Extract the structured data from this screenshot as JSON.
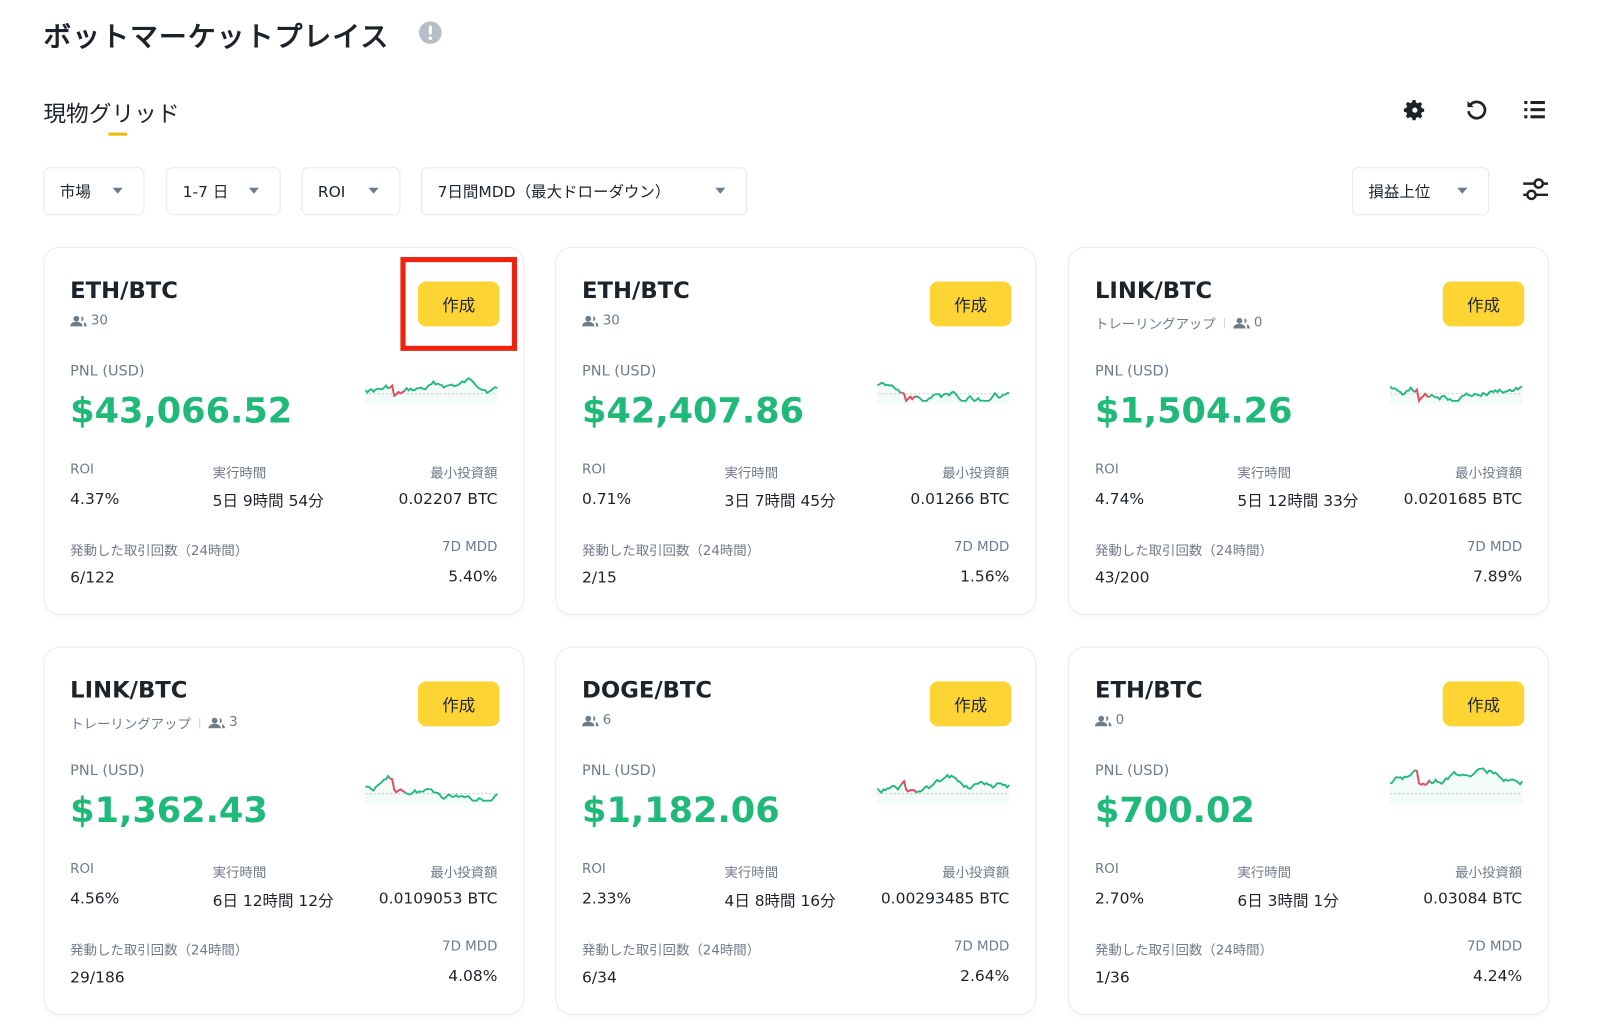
{
  "header": {
    "title": "ボットマーケットプレイス"
  },
  "tab": {
    "label": "現物グリッド"
  },
  "filters": [
    "市場",
    "1-7 日",
    "ROI",
    "7日間MDD（最大ドローダウン）"
  ],
  "sort": "損益上位",
  "card_labels": {
    "pnl": "PNL (USD)",
    "roi": "ROI",
    "runtime": "実行時間",
    "min_invest": "最小投資額",
    "trades": "発動した取引回数（24時間）",
    "mdd": "7D MDD",
    "create": "作成"
  },
  "cards": [
    {
      "pair": "ETH/BTC",
      "tag": null,
      "users": "30",
      "pnl": "$43,066.52",
      "roi": "4.37%",
      "runtime": "5日 9時間 54分",
      "min_invest": "0.02207 BTC",
      "trades": "6/122",
      "mdd": "5.40%"
    },
    {
      "pair": "ETH/BTC",
      "tag": null,
      "users": "30",
      "pnl": "$42,407.86",
      "roi": "0.71%",
      "runtime": "3日 7時間 45分",
      "min_invest": "0.01266 BTC",
      "trades": "2/15",
      "mdd": "1.56%"
    },
    {
      "pair": "LINK/BTC",
      "tag": "トレーリングアップ",
      "users": "0",
      "pnl": "$1,504.26",
      "roi": "4.74%",
      "runtime": "5日 12時間 33分",
      "min_invest": "0.0201685 BTC",
      "trades": "43/200",
      "mdd": "7.89%"
    },
    {
      "pair": "LINK/BTC",
      "tag": "トレーリングアップ",
      "users": "3",
      "pnl": "$1,362.43",
      "roi": "4.56%",
      "runtime": "6日 12時間 12分",
      "min_invest": "0.0109053 BTC",
      "trades": "29/186",
      "mdd": "4.08%"
    },
    {
      "pair": "DOGE/BTC",
      "tag": null,
      "users": "6",
      "pnl": "$1,182.06",
      "roi": "2.33%",
      "runtime": "4日 8時間 16分",
      "min_invest": "0.00293485 BTC",
      "trades": "6/34",
      "mdd": "2.64%"
    },
    {
      "pair": "ETH/BTC",
      "tag": null,
      "users": "0",
      "pnl": "$700.02",
      "roi": "2.70%",
      "runtime": "6日 3時間 1分",
      "min_invest": "0.03084 BTC",
      "trades": "1/36",
      "mdd": "4.24%"
    }
  ]
}
